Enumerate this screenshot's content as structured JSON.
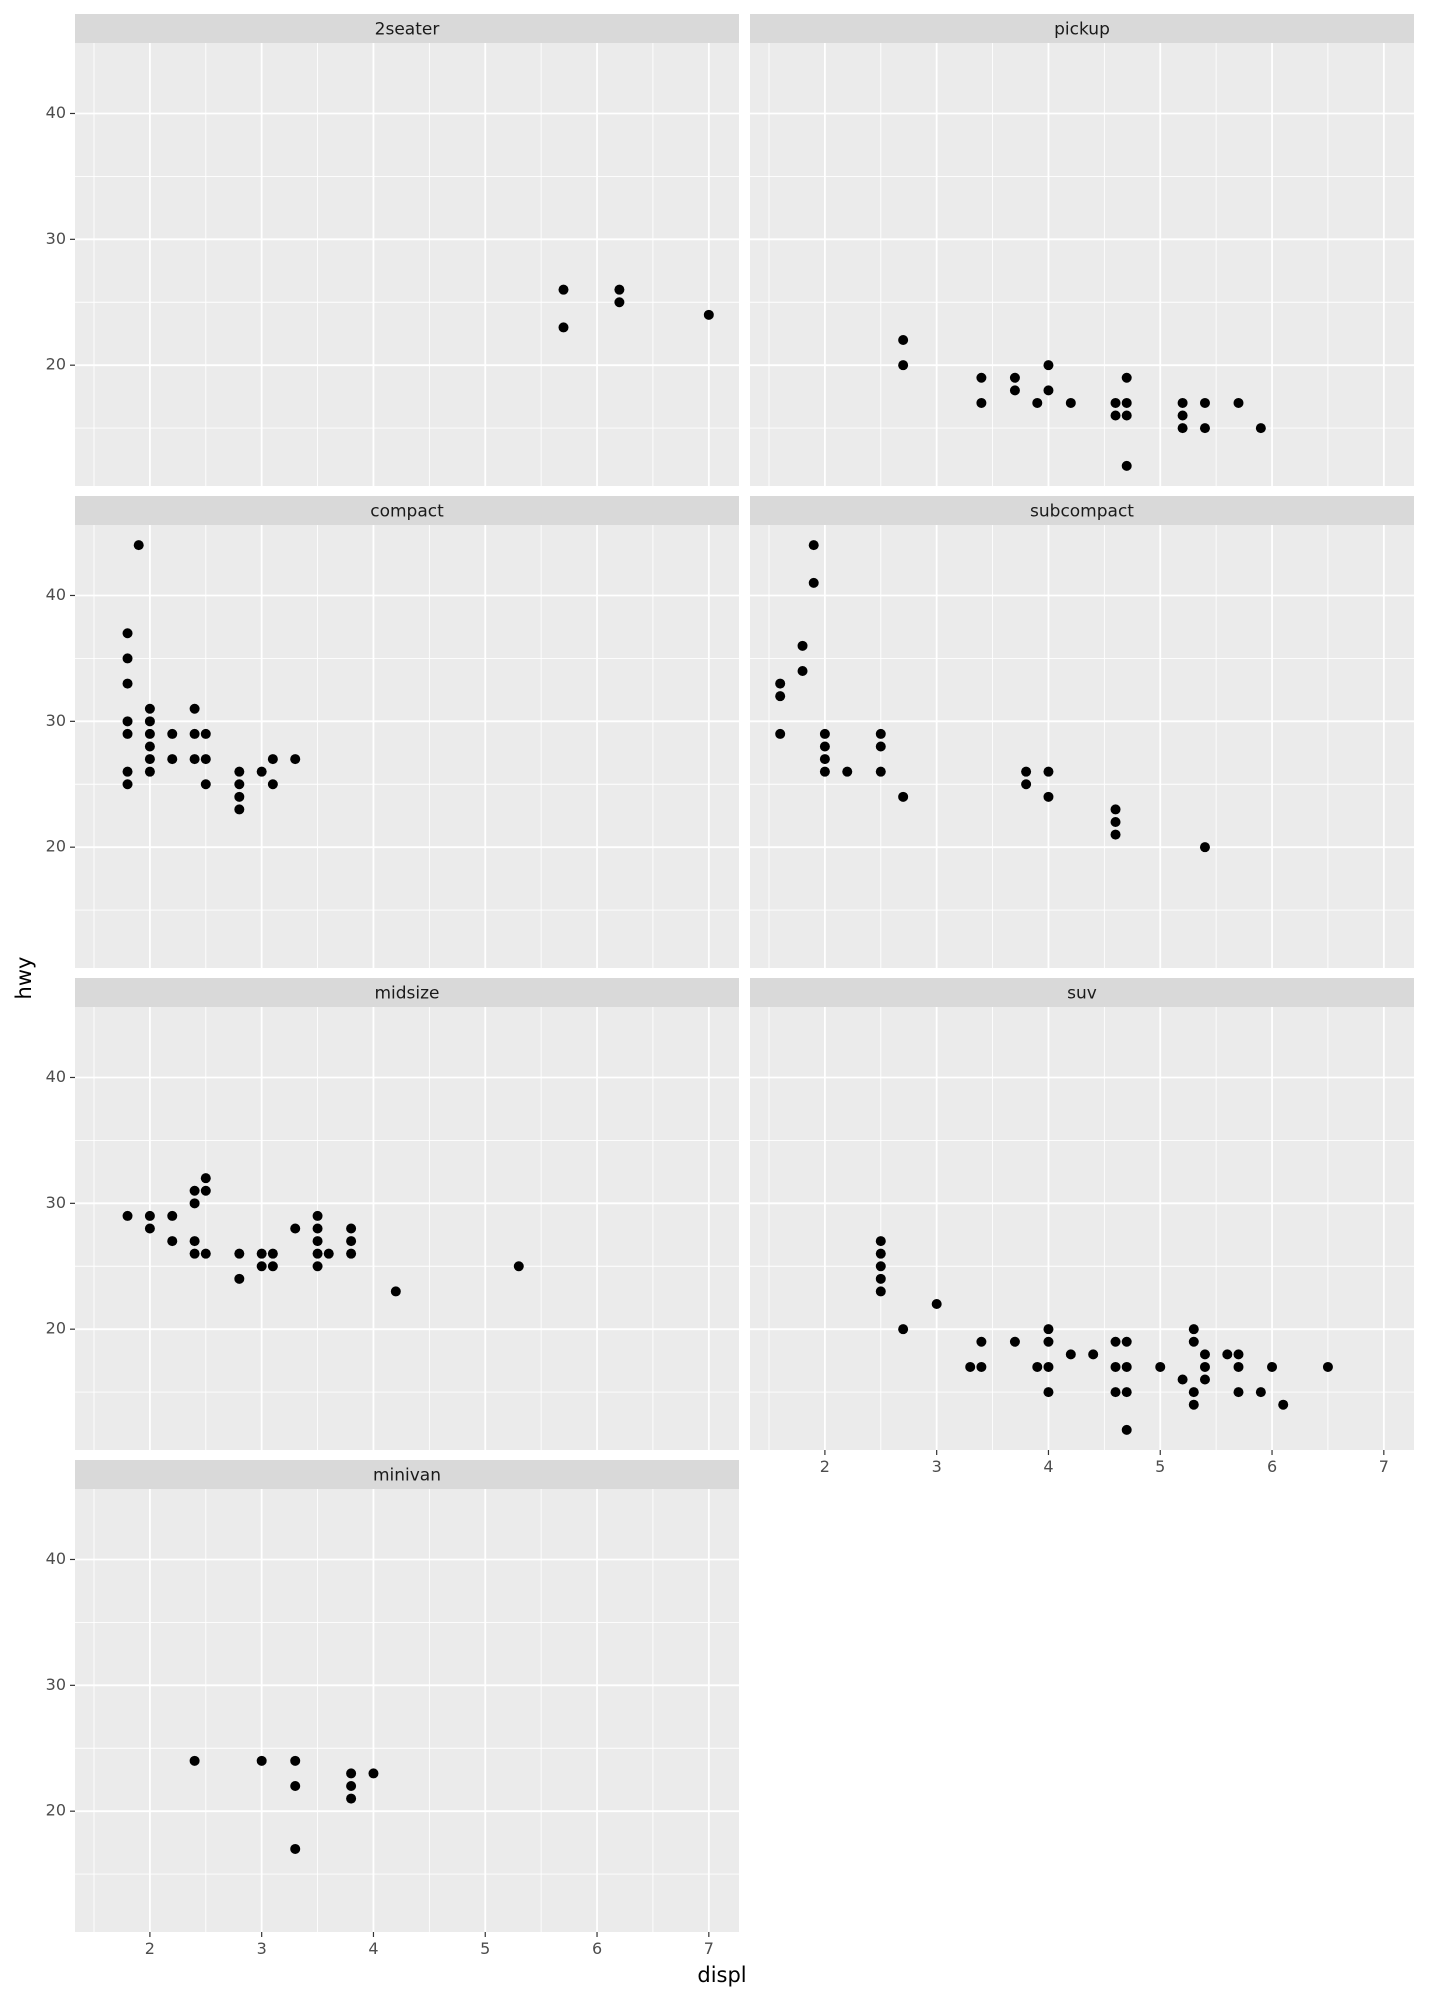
{
  "chart_data": {
    "type": "scatter",
    "title": "",
    "xlabel": "displ",
    "ylabel": "hwy",
    "xlim": [
      1.33,
      7.27
    ],
    "ylim": [
      10.4,
      45.6
    ],
    "x_ticks": [
      2,
      3,
      4,
      5,
      6,
      7
    ],
    "y_ticks": [
      20,
      30,
      40
    ],
    "grid": true,
    "legend": "none",
    "point_color": "#000000",
    "panel_background": "#ebebeb",
    "strip_background": "#d9d9d9",
    "facets": [
      {
        "name": "2seater",
        "points": [
          [
            5.7,
            26
          ],
          [
            5.7,
            23
          ],
          [
            6.2,
            26
          ],
          [
            6.2,
            25
          ],
          [
            7.0,
            24
          ]
        ]
      },
      {
        "name": "pickup",
        "points": [
          [
            2.7,
            22
          ],
          [
            2.7,
            20
          ],
          [
            3.4,
            19
          ],
          [
            3.4,
            17
          ],
          [
            3.7,
            19
          ],
          [
            3.7,
            18
          ],
          [
            3.9,
            17
          ],
          [
            4.0,
            20
          ],
          [
            4.0,
            18
          ],
          [
            4.2,
            17
          ],
          [
            4.6,
            17
          ],
          [
            4.6,
            16
          ],
          [
            4.7,
            19
          ],
          [
            4.7,
            17
          ],
          [
            4.7,
            16
          ],
          [
            4.7,
            12
          ],
          [
            5.2,
            17
          ],
          [
            5.2,
            16
          ],
          [
            5.2,
            15
          ],
          [
            5.4,
            17
          ],
          [
            5.4,
            15
          ],
          [
            5.7,
            17
          ],
          [
            5.9,
            15
          ]
        ]
      },
      {
        "name": "compact",
        "points": [
          [
            1.8,
            37
          ],
          [
            1.8,
            35
          ],
          [
            1.8,
            33
          ],
          [
            1.8,
            30
          ],
          [
            1.8,
            29
          ],
          [
            1.8,
            26
          ],
          [
            1.8,
            25
          ],
          [
            1.9,
            44
          ],
          [
            2.0,
            31
          ],
          [
            2.0,
            30
          ],
          [
            2.0,
            29
          ],
          [
            2.0,
            28
          ],
          [
            2.0,
            27
          ],
          [
            2.0,
            26
          ],
          [
            2.2,
            29
          ],
          [
            2.2,
            27
          ],
          [
            2.4,
            31
          ],
          [
            2.4,
            29
          ],
          [
            2.4,
            27
          ],
          [
            2.5,
            29
          ],
          [
            2.5,
            27
          ],
          [
            2.5,
            25
          ],
          [
            2.8,
            26
          ],
          [
            2.8,
            25
          ],
          [
            2.8,
            24
          ],
          [
            2.8,
            23
          ],
          [
            3.0,
            26
          ],
          [
            3.1,
            27
          ],
          [
            3.1,
            25
          ],
          [
            3.3,
            27
          ]
        ]
      },
      {
        "name": "subcompact",
        "points": [
          [
            1.6,
            33
          ],
          [
            1.6,
            32
          ],
          [
            1.6,
            29
          ],
          [
            1.8,
            36
          ],
          [
            1.8,
            34
          ],
          [
            1.9,
            44
          ],
          [
            1.9,
            41
          ],
          [
            2.0,
            29
          ],
          [
            2.0,
            28
          ],
          [
            2.0,
            27
          ],
          [
            2.0,
            26
          ],
          [
            2.2,
            26
          ],
          [
            2.5,
            29
          ],
          [
            2.5,
            28
          ],
          [
            2.5,
            26
          ],
          [
            2.7,
            24
          ],
          [
            3.8,
            26
          ],
          [
            3.8,
            25
          ],
          [
            4.0,
            26
          ],
          [
            4.0,
            24
          ],
          [
            4.6,
            23
          ],
          [
            4.6,
            22
          ],
          [
            4.6,
            21
          ],
          [
            5.4,
            20
          ]
        ]
      },
      {
        "name": "midsize",
        "points": [
          [
            1.8,
            29
          ],
          [
            2.0,
            29
          ],
          [
            2.0,
            28
          ],
          [
            2.2,
            29
          ],
          [
            2.2,
            27
          ],
          [
            2.4,
            31
          ],
          [
            2.4,
            30
          ],
          [
            2.4,
            27
          ],
          [
            2.4,
            26
          ],
          [
            2.5,
            32
          ],
          [
            2.5,
            31
          ],
          [
            2.5,
            26
          ],
          [
            2.8,
            26
          ],
          [
            2.8,
            24
          ],
          [
            3.0,
            26
          ],
          [
            3.0,
            25
          ],
          [
            3.1,
            26
          ],
          [
            3.1,
            25
          ],
          [
            3.3,
            28
          ],
          [
            3.5,
            29
          ],
          [
            3.5,
            28
          ],
          [
            3.5,
            27
          ],
          [
            3.5,
            26
          ],
          [
            3.5,
            25
          ],
          [
            3.6,
            26
          ],
          [
            3.8,
            28
          ],
          [
            3.8,
            27
          ],
          [
            3.8,
            26
          ],
          [
            4.2,
            23
          ],
          [
            5.3,
            25
          ]
        ]
      },
      {
        "name": "suv",
        "points": [
          [
            2.5,
            27
          ],
          [
            2.5,
            26
          ],
          [
            2.5,
            25
          ],
          [
            2.5,
            24
          ],
          [
            2.5,
            23
          ],
          [
            2.7,
            20
          ],
          [
            3.0,
            22
          ],
          [
            3.3,
            17
          ],
          [
            3.4,
            19
          ],
          [
            3.4,
            17
          ],
          [
            3.7,
            19
          ],
          [
            3.9,
            17
          ],
          [
            4.0,
            20
          ],
          [
            4.0,
            19
          ],
          [
            4.0,
            17
          ],
          [
            4.0,
            15
          ],
          [
            4.2,
            18
          ],
          [
            4.4,
            18
          ],
          [
            4.6,
            19
          ],
          [
            4.6,
            17
          ],
          [
            4.6,
            15
          ],
          [
            4.7,
            19
          ],
          [
            4.7,
            17
          ],
          [
            4.7,
            15
          ],
          [
            4.7,
            12
          ],
          [
            5.0,
            17
          ],
          [
            5.2,
            16
          ],
          [
            5.3,
            20
          ],
          [
            5.3,
            19
          ],
          [
            5.3,
            15
          ],
          [
            5.3,
            14
          ],
          [
            5.4,
            18
          ],
          [
            5.4,
            17
          ],
          [
            5.4,
            16
          ],
          [
            5.6,
            18
          ],
          [
            5.7,
            18
          ],
          [
            5.7,
            17
          ],
          [
            5.7,
            15
          ],
          [
            5.9,
            15
          ],
          [
            6.0,
            17
          ],
          [
            6.1,
            14
          ],
          [
            6.5,
            17
          ]
        ]
      },
      {
        "name": "minivan",
        "points": [
          [
            2.4,
            24
          ],
          [
            3.0,
            24
          ],
          [
            3.3,
            24
          ],
          [
            3.3,
            22
          ],
          [
            3.3,
            17
          ],
          [
            3.8,
            23
          ],
          [
            3.8,
            22
          ],
          [
            3.8,
            21
          ],
          [
            4.0,
            23
          ]
        ]
      }
    ]
  }
}
